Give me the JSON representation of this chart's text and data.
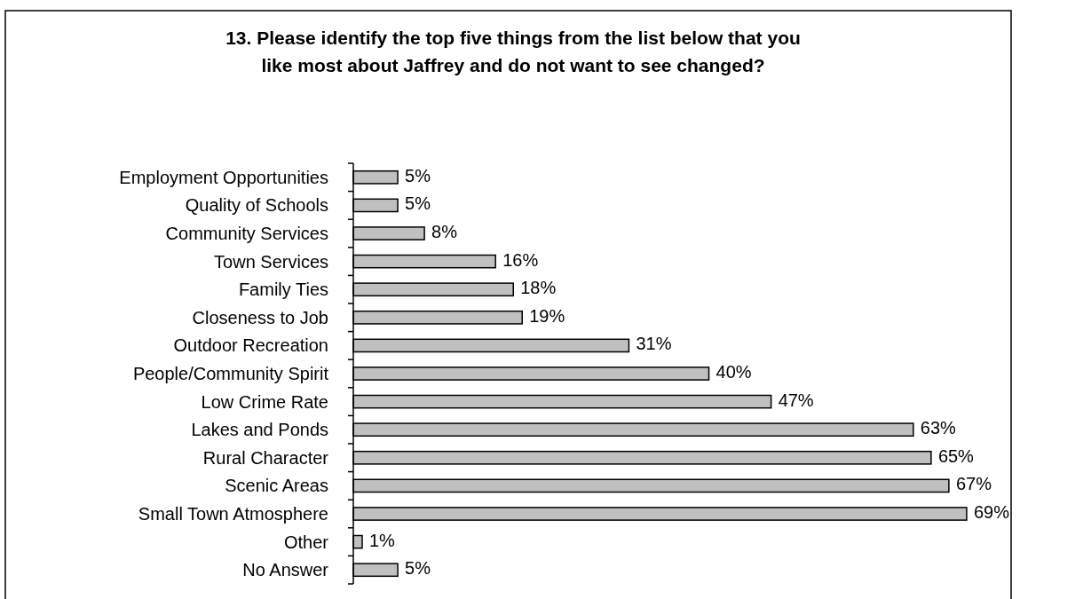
{
  "chart_data": {
    "type": "bar",
    "orientation": "horizontal",
    "title": "13.  Please identify the top five things from the list below that you\nlike most about Jaffrey and do not want to see changed?",
    "categories": [
      "Employment Opportunities",
      "Quality of Schools",
      "Community Services",
      "Town Services",
      "Family Ties",
      "Closeness to Job",
      "Outdoor Recreation",
      "People/Community Spirit",
      "Low Crime Rate",
      "Lakes and Ponds",
      "Rural Character",
      "Scenic Areas",
      "Small Town Atmosphere",
      "Other",
      "No Answer"
    ],
    "values": [
      5,
      5,
      8,
      16,
      18,
      19,
      31,
      40,
      47,
      63,
      65,
      67,
      69,
      1,
      5
    ],
    "value_labels": [
      "5%",
      "5%",
      "8%",
      "16%",
      "18%",
      "19%",
      "31%",
      "40%",
      "47%",
      "63%",
      "65%",
      "67%",
      "69%",
      "1%",
      "5%"
    ],
    "color": "#c0c0c0",
    "xlim": [
      0,
      74
    ],
    "tick_labels": "y"
  }
}
